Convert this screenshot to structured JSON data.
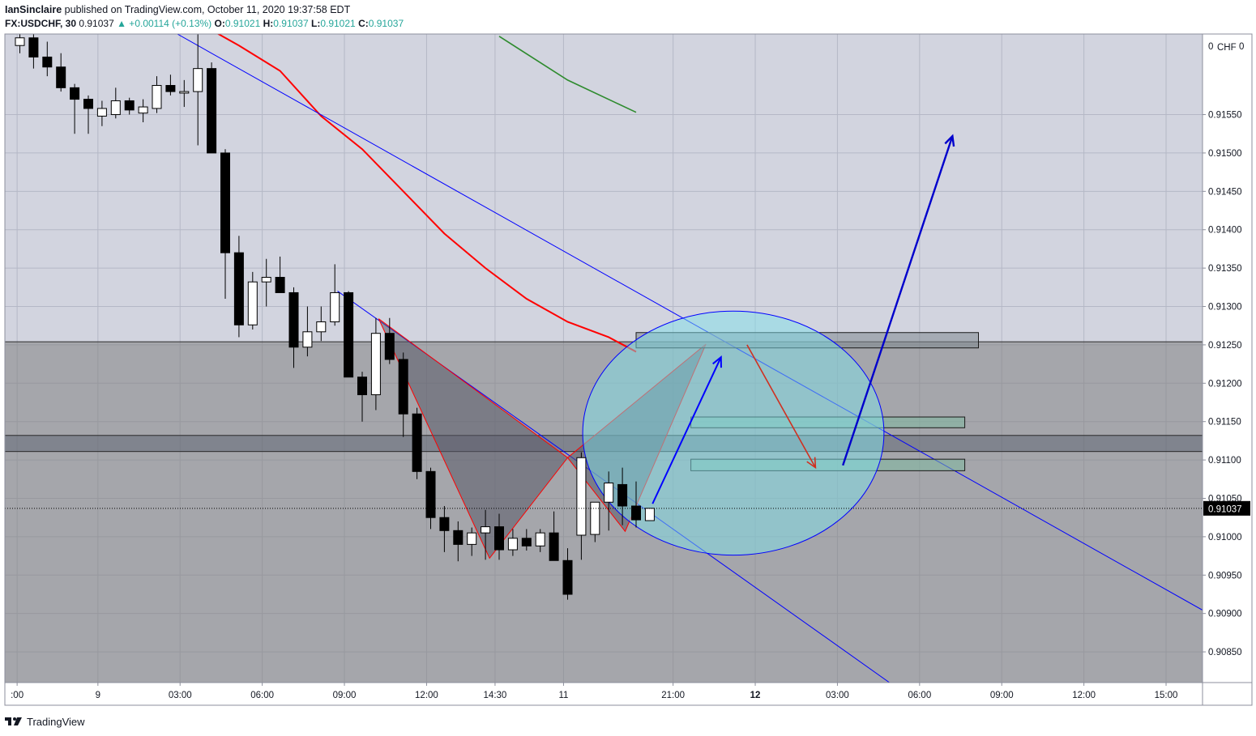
{
  "header": {
    "user": "IanSinclaire",
    "published": " published on TradingView.com, October 11, 2020 19:37:58 EDT",
    "symbol": "FX:USDCHF, 30",
    "last": "0.91037",
    "change": "▲ +0.00114 (+0.13%)",
    "o_label": "O:",
    "o_val": "0.91021",
    "h_label": "H:",
    "h_val": "0.91037",
    "l_label": "L:",
    "l_val": "0.91021",
    "c_label": "C:",
    "c_val": "0.91037"
  },
  "footer": {
    "brand": "TradingView",
    "logo_icon": "tradingview-logo-icon"
  },
  "colors": {
    "up_candle": "#ffffff",
    "down_candle": "#000000",
    "ema_red": "#ff0000",
    "ema_green": "#2e8b2e",
    "trendline": "#0000ff",
    "zone": "#808080",
    "circle_fill": "#7fe0ea",
    "pattern": "#ff0000",
    "price_label_bg": "#000000",
    "accent_change": "#26a69a"
  },
  "chart_data": {
    "type": "candlestick",
    "currency": "CHF",
    "last_price": "0.91037",
    "ylim": [
      0.9081,
      0.91655
    ],
    "y_ticks": [
      "0.91550",
      "0.91500",
      "0.91450",
      "0.91400",
      "0.91350",
      "0.91300",
      "0.91250",
      "0.91200",
      "0.91150",
      "0.91100",
      "0.91050",
      "0.91000",
      "0.90950",
      "0.90900",
      "0.90850"
    ],
    "y_top_partial": "0",
    "x_ticks": [
      {
        "label": ":00",
        "bar": -0.2,
        "bold": false
      },
      {
        "label": "9",
        "bar": 5.7,
        "bold": false
      },
      {
        "label": "03:00",
        "bar": 11.7,
        "bold": false
      },
      {
        "label": "06:00",
        "bar": 17.7,
        "bold": false
      },
      {
        "label": "09:00",
        "bar": 23.7,
        "bold": false
      },
      {
        "label": "12:00",
        "bar": 29.7,
        "bold": false
      },
      {
        "label": "14:30",
        "bar": 34.7,
        "bold": false
      },
      {
        "label": "11",
        "bar": 39.7,
        "bold": false
      },
      {
        "label": "21:00",
        "bar": 47.7,
        "bold": false
      },
      {
        "label": "12",
        "bar": 53.7,
        "bold": true
      },
      {
        "label": "03:00",
        "bar": 59.7,
        "bold": false
      },
      {
        "label": "06:00",
        "bar": 65.7,
        "bold": false
      },
      {
        "label": "09:00",
        "bar": 71.7,
        "bold": false
      },
      {
        "label": "12:00",
        "bar": 77.7,
        "bold": false
      },
      {
        "label": "15:00",
        "bar": 83.7,
        "bold": false
      }
    ],
    "candles": [
      {
        "o": 0.9164,
        "h": 0.91665,
        "l": 0.9163,
        "c": 0.9165
      },
      {
        "o": 0.9165,
        "h": 0.91665,
        "l": 0.9161,
        "c": 0.91625
      },
      {
        "o": 0.91625,
        "h": 0.91645,
        "l": 0.916,
        "c": 0.91612
      },
      {
        "o": 0.91612,
        "h": 0.9163,
        "l": 0.9158,
        "c": 0.91585
      },
      {
        "o": 0.91585,
        "h": 0.9159,
        "l": 0.91525,
        "c": 0.9157
      },
      {
        "o": 0.9157,
        "h": 0.91575,
        "l": 0.91525,
        "c": 0.91558
      },
      {
        "o": 0.91548,
        "h": 0.91568,
        "l": 0.91535,
        "c": 0.91558
      },
      {
        "o": 0.9155,
        "h": 0.91585,
        "l": 0.91545,
        "c": 0.91568
      },
      {
        "o": 0.91568,
        "h": 0.91572,
        "l": 0.9155,
        "c": 0.91556
      },
      {
        "o": 0.91552,
        "h": 0.9157,
        "l": 0.9154,
        "c": 0.9156
      },
      {
        "o": 0.91558,
        "h": 0.916,
        "l": 0.91552,
        "c": 0.91588
      },
      {
        "o": 0.91588,
        "h": 0.91602,
        "l": 0.91575,
        "c": 0.9158
      },
      {
        "o": 0.91578,
        "h": 0.91595,
        "l": 0.9156,
        "c": 0.9158
      },
      {
        "o": 0.9158,
        "h": 0.9166,
        "l": 0.9151,
        "c": 0.9161
      },
      {
        "o": 0.9161,
        "h": 0.91618,
        "l": 0.915,
        "c": 0.915
      },
      {
        "o": 0.915,
        "h": 0.91505,
        "l": 0.9131,
        "c": 0.9137
      },
      {
        "o": 0.9137,
        "h": 0.91392,
        "l": 0.9126,
        "c": 0.91276
      },
      {
        "o": 0.91276,
        "h": 0.91345,
        "l": 0.9127,
        "c": 0.91332
      },
      {
        "o": 0.91332,
        "h": 0.91362,
        "l": 0.913,
        "c": 0.91338
      },
      {
        "o": 0.91338,
        "h": 0.91365,
        "l": 0.9132,
        "c": 0.91318
      },
      {
        "o": 0.91318,
        "h": 0.91325,
        "l": 0.9122,
        "c": 0.91247
      },
      {
        "o": 0.91247,
        "h": 0.913,
        "l": 0.91235,
        "c": 0.91267
      },
      {
        "o": 0.91267,
        "h": 0.913,
        "l": 0.91255,
        "c": 0.9128
      },
      {
        "o": 0.9128,
        "h": 0.91355,
        "l": 0.91275,
        "c": 0.91318
      },
      {
        "o": 0.91318,
        "h": 0.9132,
        "l": 0.9121,
        "c": 0.91208
      },
      {
        "o": 0.91208,
        "h": 0.91215,
        "l": 0.9115,
        "c": 0.91185
      },
      {
        "o": 0.91185,
        "h": 0.91285,
        "l": 0.91165,
        "c": 0.91265
      },
      {
        "o": 0.91265,
        "h": 0.91285,
        "l": 0.91225,
        "c": 0.91231
      },
      {
        "o": 0.91231,
        "h": 0.9124,
        "l": 0.9113,
        "c": 0.9116
      },
      {
        "o": 0.9116,
        "h": 0.91168,
        "l": 0.91075,
        "c": 0.91085
      },
      {
        "o": 0.91085,
        "h": 0.9109,
        "l": 0.9101,
        "c": 0.91025
      },
      {
        "o": 0.91025,
        "h": 0.9104,
        "l": 0.9098,
        "c": 0.91008
      },
      {
        "o": 0.91008,
        "h": 0.9102,
        "l": 0.90968,
        "c": 0.9099
      },
      {
        "o": 0.9099,
        "h": 0.91012,
        "l": 0.90975,
        "c": 0.91005
      },
      {
        "o": 0.91005,
        "h": 0.91035,
        "l": 0.9097,
        "c": 0.91013
      },
      {
        "o": 0.91013,
        "h": 0.9103,
        "l": 0.9097,
        "c": 0.90983
      },
      {
        "o": 0.90983,
        "h": 0.9101,
        "l": 0.90975,
        "c": 0.90998
      },
      {
        "o": 0.90998,
        "h": 0.9101,
        "l": 0.90982,
        "c": 0.90988
      },
      {
        "o": 0.90988,
        "h": 0.9101,
        "l": 0.9098,
        "c": 0.91005
      },
      {
        "o": 0.91005,
        "h": 0.91033,
        "l": 0.9097,
        "c": 0.90969
      },
      {
        "o": 0.90969,
        "h": 0.90985,
        "l": 0.90918,
        "c": 0.90925
      },
      {
        "o": 0.91002,
        "h": 0.9111,
        "l": 0.9097,
        "c": 0.91103
      },
      {
        "o": 0.91003,
        "h": 0.91045,
        "l": 0.90993,
        "c": 0.91045
      },
      {
        "o": 0.91045,
        "h": 0.91085,
        "l": 0.91008,
        "c": 0.9107
      },
      {
        "o": 0.91068,
        "h": 0.9109,
        "l": 0.91015,
        "c": 0.9104
      },
      {
        "o": 0.9104,
        "h": 0.91072,
        "l": 0.91012,
        "c": 0.91022
      },
      {
        "o": 0.91021,
        "h": 0.91037,
        "l": 0.91021,
        "c": 0.91037
      }
    ],
    "overlays": {
      "ema_red": [
        [
          4.0,
          0.9172
        ],
        [
          10.0,
          0.9172
        ],
        [
          14.0,
          0.9166
        ],
        [
          16.0,
          0.9164
        ],
        [
          19.0,
          0.91607
        ],
        [
          22.0,
          0.91548
        ],
        [
          25.0,
          0.91505
        ],
        [
          28.0,
          0.9145
        ],
        [
          31.0,
          0.91395
        ],
        [
          34.0,
          0.9135
        ],
        [
          37.0,
          0.9131
        ],
        [
          40.0,
          0.9128
        ],
        [
          43.0,
          0.9126
        ],
        [
          45.0,
          0.91241
        ]
      ],
      "ema_green": [
        [
          35.0,
          0.91652
        ],
        [
          40.0,
          0.91595
        ],
        [
          45.0,
          0.91553
        ]
      ],
      "trendline_upper": [
        [
          11.5,
          0.91655
        ],
        [
          87.0,
          0.90898
        ]
      ],
      "trendline_lower": [
        [
          23.2,
          0.9132
        ],
        [
          63.5,
          0.9081
        ]
      ],
      "zone_wide": [
        0.91254,
        0.9081
      ],
      "zone_band": [
        0.91132,
        0.91111
      ],
      "rect_top": [
        [
          45.0,
          0.91266
        ],
        [
          70.0,
          0.91246
        ]
      ],
      "rect_mid": [
        [
          49.0,
          0.91156
        ],
        [
          69.0,
          0.91142
        ]
      ],
      "rect_low": [
        [
          49.0,
          0.91101
        ],
        [
          69.0,
          0.91086
        ]
      ],
      "pattern_x": [
        26.2,
        0.91284
      ],
      "pattern_a": [
        34.3,
        0.90972
      ],
      "pattern_b": [
        40.0,
        0.91103
      ],
      "pattern_c": [
        44.2,
        0.91007
      ],
      "pattern_d": [
        50.1,
        0.91251
      ],
      "circle": {
        "cx": 52.1,
        "cy": 0.91135,
        "rx_bars": 11.0,
        "ry": 0.00159
      },
      "arrow_up_small": [
        [
          46.2,
          0.91043
        ],
        [
          51.2,
          0.91234
        ]
      ],
      "arrow_down": [
        [
          53.1,
          0.9125
        ],
        [
          58.1,
          0.9109
        ]
      ],
      "arrow_up_big": [
        [
          60.1,
          0.91093
        ],
        [
          68.1,
          0.91522
        ]
      ]
    }
  }
}
